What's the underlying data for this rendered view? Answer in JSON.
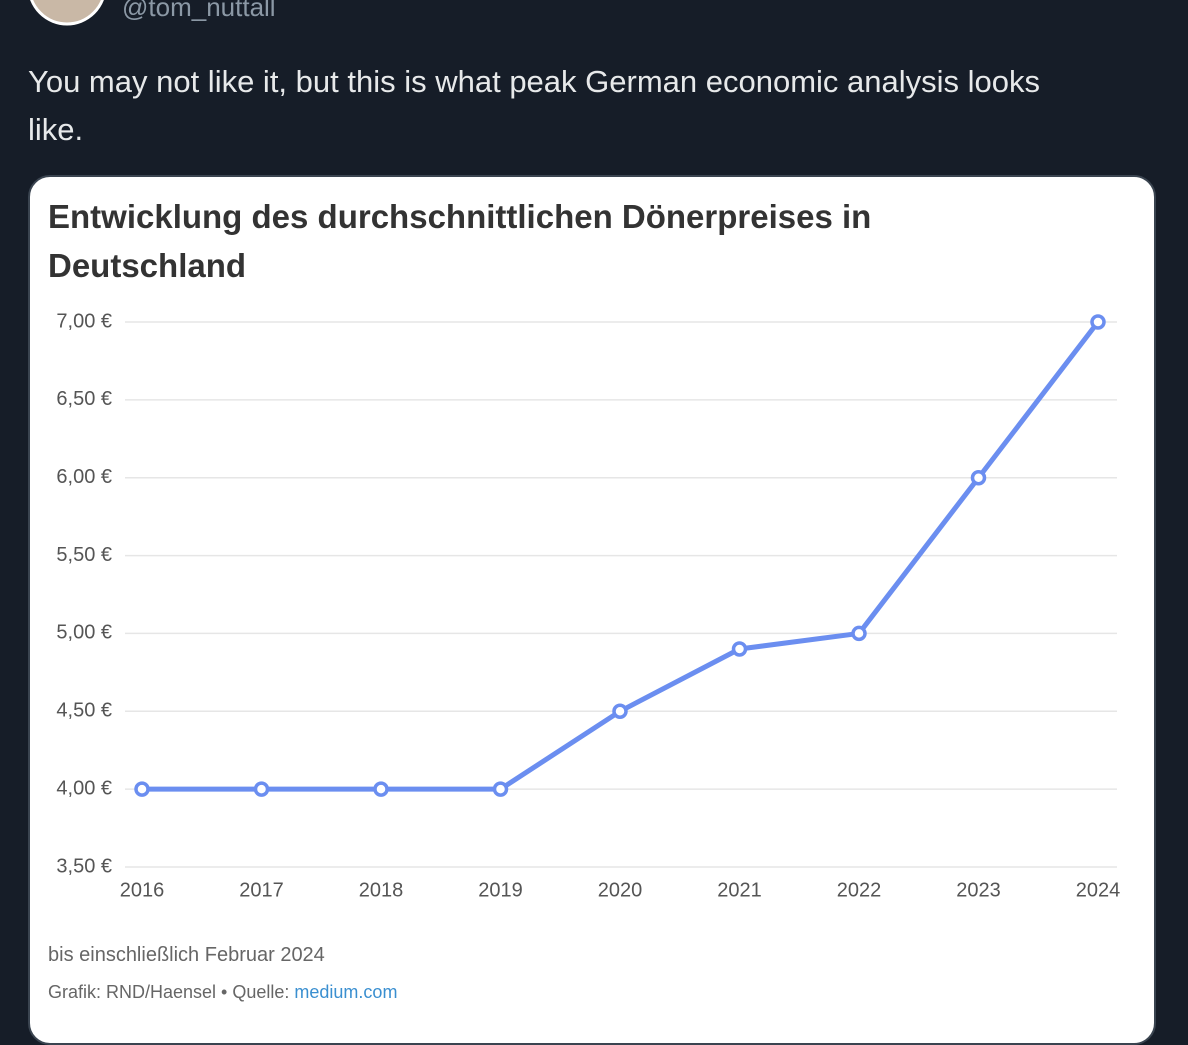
{
  "tweet": {
    "handle": "@tom_nuttall",
    "text": "You may not like it, but this is what peak German economic analysis looks like."
  },
  "chart_data": {
    "type": "line",
    "title": "Entwicklung des durchschnittlichen Dönerpreises in Deutschland",
    "categories": [
      "2016",
      "2017",
      "2018",
      "2019",
      "2020",
      "2021",
      "2022",
      "2023",
      "2024"
    ],
    "values": [
      4.0,
      4.0,
      4.0,
      4.0,
      4.5,
      4.9,
      5.0,
      6.0,
      7.0
    ],
    "color": "#6b8ef0",
    "ylim": [
      3.5,
      7.0
    ],
    "yticks": [
      {
        "value": 3.5,
        "label": "3,50 €"
      },
      {
        "value": 4.0,
        "label": "4,00 €"
      },
      {
        "value": 4.5,
        "label": "4,50 €"
      },
      {
        "value": 5.0,
        "label": "5,00 €"
      },
      {
        "value": 5.5,
        "label": "5,50 €"
      },
      {
        "value": 6.0,
        "label": "6,00 €"
      },
      {
        "value": 6.5,
        "label": "6,50 €"
      },
      {
        "value": 7.0,
        "label": "7,00 €"
      }
    ],
    "grid": true,
    "note": "bis einschließlich Februar 2024",
    "source": "Grafik: RND/Haensel • Quelle:",
    "source_link": "medium.com"
  }
}
